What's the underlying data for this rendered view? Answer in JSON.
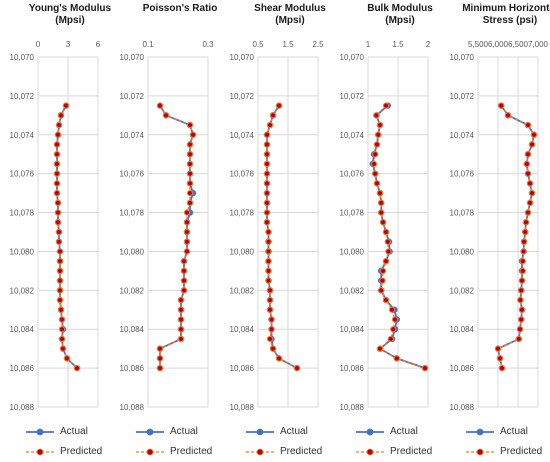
{
  "chart_data": [
    {
      "type": "line",
      "title": "Young's Modulus",
      "units": "(Mpsi)",
      "xlim": [
        0,
        6
      ],
      "x_ticks": [
        "0",
        "3",
        "6"
      ],
      "ylim": [
        10070,
        10088
      ],
      "y_ticks": [
        "10,070",
        "10,072",
        "10,074",
        "10,076",
        "10,078",
        "10,080",
        "10,082",
        "10,084",
        "10,086",
        "10,088"
      ],
      "depth": [
        10072.5,
        10073,
        10073.5,
        10074,
        10074.5,
        10075,
        10075.5,
        10076,
        10076.5,
        10077,
        10077.5,
        10078,
        10078.5,
        10079,
        10079.5,
        10080,
        10080.5,
        10081,
        10081.5,
        10082,
        10082.5,
        10083,
        10083.5,
        10084,
        10084.5,
        10085,
        10085.5,
        10086
      ],
      "series": [
        {
          "name": "Actual",
          "values": [
            2.8,
            2.3,
            2.1,
            2.0,
            1.9,
            1.9,
            1.9,
            1.9,
            1.9,
            1.9,
            2.0,
            2.0,
            2.0,
            2.1,
            2.1,
            2.2,
            2.2,
            2.2,
            2.2,
            2.2,
            2.2,
            2.3,
            2.4,
            2.5,
            2.4,
            2.5,
            2.9,
            3.9
          ]
        },
        {
          "name": "Predicted",
          "values": [
            2.8,
            2.3,
            2.1,
            2.0,
            1.9,
            1.9,
            1.9,
            1.9,
            1.9,
            1.9,
            2.0,
            2.0,
            2.0,
            2.1,
            2.1,
            2.2,
            2.2,
            2.2,
            2.2,
            2.2,
            2.2,
            2.3,
            2.4,
            2.4,
            2.4,
            2.5,
            2.9,
            3.9
          ]
        }
      ]
    },
    {
      "type": "line",
      "title": "Poisson's Ratio",
      "units": "",
      "xlim": [
        0.1,
        0.3
      ],
      "x_ticks": [
        "0.1",
        "0.3"
      ],
      "ylim": [
        10070,
        10088
      ],
      "y_ticks": [
        "10,070",
        "10,072",
        "10,074",
        "10,076",
        "10,078",
        "10,080",
        "10,082",
        "10,084",
        "10,086",
        "10,088"
      ],
      "depth": [
        10072.5,
        10073,
        10073.5,
        10074,
        10074.5,
        10075,
        10075.5,
        10076,
        10076.5,
        10077,
        10077.5,
        10078,
        10078.5,
        10079,
        10079.5,
        10080,
        10080.5,
        10081,
        10081.5,
        10082,
        10082.5,
        10083,
        10083.5,
        10084,
        10084.5,
        10085,
        10085.5,
        10086
      ],
      "series": [
        {
          "name": "Actual",
          "values": [
            0.14,
            0.16,
            0.24,
            0.25,
            0.24,
            0.24,
            0.24,
            0.24,
            0.24,
            0.25,
            0.24,
            0.24,
            0.23,
            0.23,
            0.23,
            0.23,
            0.22,
            0.22,
            0.22,
            0.22,
            0.21,
            0.21,
            0.21,
            0.21,
            0.21,
            0.14,
            0.14,
            0.14
          ]
        },
        {
          "name": "Predicted",
          "values": [
            0.14,
            0.16,
            0.24,
            0.25,
            0.24,
            0.24,
            0.24,
            0.24,
            0.24,
            0.24,
            0.24,
            0.23,
            0.23,
            0.23,
            0.23,
            0.23,
            0.22,
            0.22,
            0.22,
            0.22,
            0.21,
            0.21,
            0.21,
            0.21,
            0.21,
            0.14,
            0.14,
            0.14
          ]
        }
      ]
    },
    {
      "type": "line",
      "title": "Shear Modulus",
      "units": "(Mpsi)",
      "xlim": [
        0.5,
        2.5
      ],
      "x_ticks": [
        "0.5",
        "1.5",
        "2.5"
      ],
      "ylim": [
        10070,
        10088
      ],
      "y_ticks": [
        "10,070",
        "10,072",
        "10,074",
        "10,076",
        "10,078",
        "10,080",
        "10,082",
        "10,084",
        "10,086",
        "10,088"
      ],
      "depth": [
        10072.5,
        10073,
        10073.5,
        10074,
        10074.5,
        10075,
        10075.5,
        10076,
        10076.5,
        10077,
        10077.5,
        10078,
        10078.5,
        10079,
        10079.5,
        10080,
        10080.5,
        10081,
        10081.5,
        10082,
        10082.5,
        10083,
        10083.5,
        10084,
        10084.5,
        10085,
        10085.5,
        10086
      ],
      "series": [
        {
          "name": "Actual",
          "values": [
            1.2,
            1.0,
            0.9,
            0.8,
            0.8,
            0.8,
            0.8,
            0.8,
            0.8,
            0.8,
            0.8,
            0.8,
            0.8,
            0.85,
            0.85,
            0.85,
            0.85,
            0.85,
            0.85,
            0.9,
            0.9,
            0.9,
            0.95,
            0.95,
            0.95,
            1.0,
            1.2,
            1.8
          ]
        },
        {
          "name": "Predicted",
          "values": [
            1.2,
            1.0,
            0.9,
            0.8,
            0.8,
            0.8,
            0.8,
            0.8,
            0.8,
            0.8,
            0.8,
            0.8,
            0.8,
            0.85,
            0.85,
            0.85,
            0.85,
            0.85,
            0.85,
            0.9,
            0.9,
            0.9,
            0.95,
            0.95,
            0.9,
            1.0,
            1.2,
            1.8
          ]
        }
      ]
    },
    {
      "type": "line",
      "title": "Bulk Modulus",
      "units": "(Mpsi)",
      "xlim": [
        1,
        2
      ],
      "x_ticks": [
        "1",
        "1.5",
        "2"
      ],
      "ylim": [
        10070,
        10088
      ],
      "y_ticks": [
        "10,070",
        "10,072",
        "10,074",
        "10,076",
        "10,078",
        "10,080",
        "10,082",
        "10,084",
        "10,086",
        "10,088"
      ],
      "depth": [
        10072.5,
        10073,
        10073.5,
        10074,
        10074.5,
        10075,
        10075.5,
        10076,
        10076.5,
        10077,
        10077.5,
        10078,
        10078.5,
        10079,
        10079.5,
        10080,
        10080.5,
        10081,
        10081.5,
        10082,
        10082.5,
        10083,
        10083.5,
        10084,
        10084.5,
        10085,
        10085.5,
        10086
      ],
      "series": [
        {
          "name": "Actual",
          "values": [
            1.33,
            1.14,
            1.2,
            1.17,
            1.15,
            1.1,
            1.08,
            1.12,
            1.15,
            1.2,
            1.22,
            1.22,
            1.25,
            1.3,
            1.35,
            1.36,
            1.3,
            1.22,
            1.22,
            1.22,
            1.3,
            1.44,
            1.48,
            1.45,
            1.4,
            1.2,
            1.48,
            1.95
          ]
        },
        {
          "name": "Predicted",
          "values": [
            1.3,
            1.14,
            1.2,
            1.17,
            1.15,
            1.12,
            1.1,
            1.12,
            1.15,
            1.2,
            1.22,
            1.22,
            1.25,
            1.3,
            1.33,
            1.34,
            1.3,
            1.25,
            1.24,
            1.22,
            1.3,
            1.4,
            1.45,
            1.42,
            1.38,
            1.2,
            1.48,
            1.95
          ]
        }
      ]
    },
    {
      "type": "line",
      "title": "Minimum Horizontal Stress (psi)",
      "units": "",
      "xlim": [
        5500,
        7000
      ],
      "x_ticks": [
        "5,500",
        "6,000",
        "6,500",
        "7,000"
      ],
      "ylim": [
        10070,
        10088
      ],
      "y_ticks": [
        "10,070",
        "10,072",
        "10,074",
        "10,076",
        "10,078",
        "10,080",
        "10,082",
        "10,084",
        "10,086",
        "10,088"
      ],
      "depth": [
        10072.5,
        10073,
        10073.5,
        10074,
        10074.5,
        10075,
        10075.5,
        10076,
        10076.5,
        10077,
        10077.5,
        10078,
        10078.5,
        10079,
        10079.5,
        10080,
        10080.5,
        10081,
        10081.5,
        10082,
        10082.5,
        10083,
        10083.5,
        10084,
        10084.5,
        10085,
        10085.5,
        10086
      ],
      "series": [
        {
          "name": "Actual",
          "values": [
            6080,
            6250,
            6750,
            6900,
            6850,
            6750,
            6720,
            6750,
            6800,
            6850,
            6800,
            6750,
            6700,
            6680,
            6650,
            6640,
            6600,
            6600,
            6600,
            6580,
            6560,
            6600,
            6580,
            6550,
            6520,
            6000,
            6050,
            6100
          ]
        },
        {
          "name": "Predicted",
          "values": [
            6080,
            6250,
            6750,
            6900,
            6850,
            6750,
            6720,
            6750,
            6800,
            6850,
            6800,
            6750,
            6700,
            6680,
            6650,
            6640,
            6620,
            6620,
            6600,
            6580,
            6560,
            6600,
            6580,
            6550,
            6520,
            6000,
            6050,
            6100
          ]
        }
      ]
    }
  ],
  "style": {
    "actual_color": "#4472c4",
    "predicted_line_color": "#ed7d31",
    "predicted_marker_color": "#c00000",
    "grid_color": "#d9d9d9"
  }
}
